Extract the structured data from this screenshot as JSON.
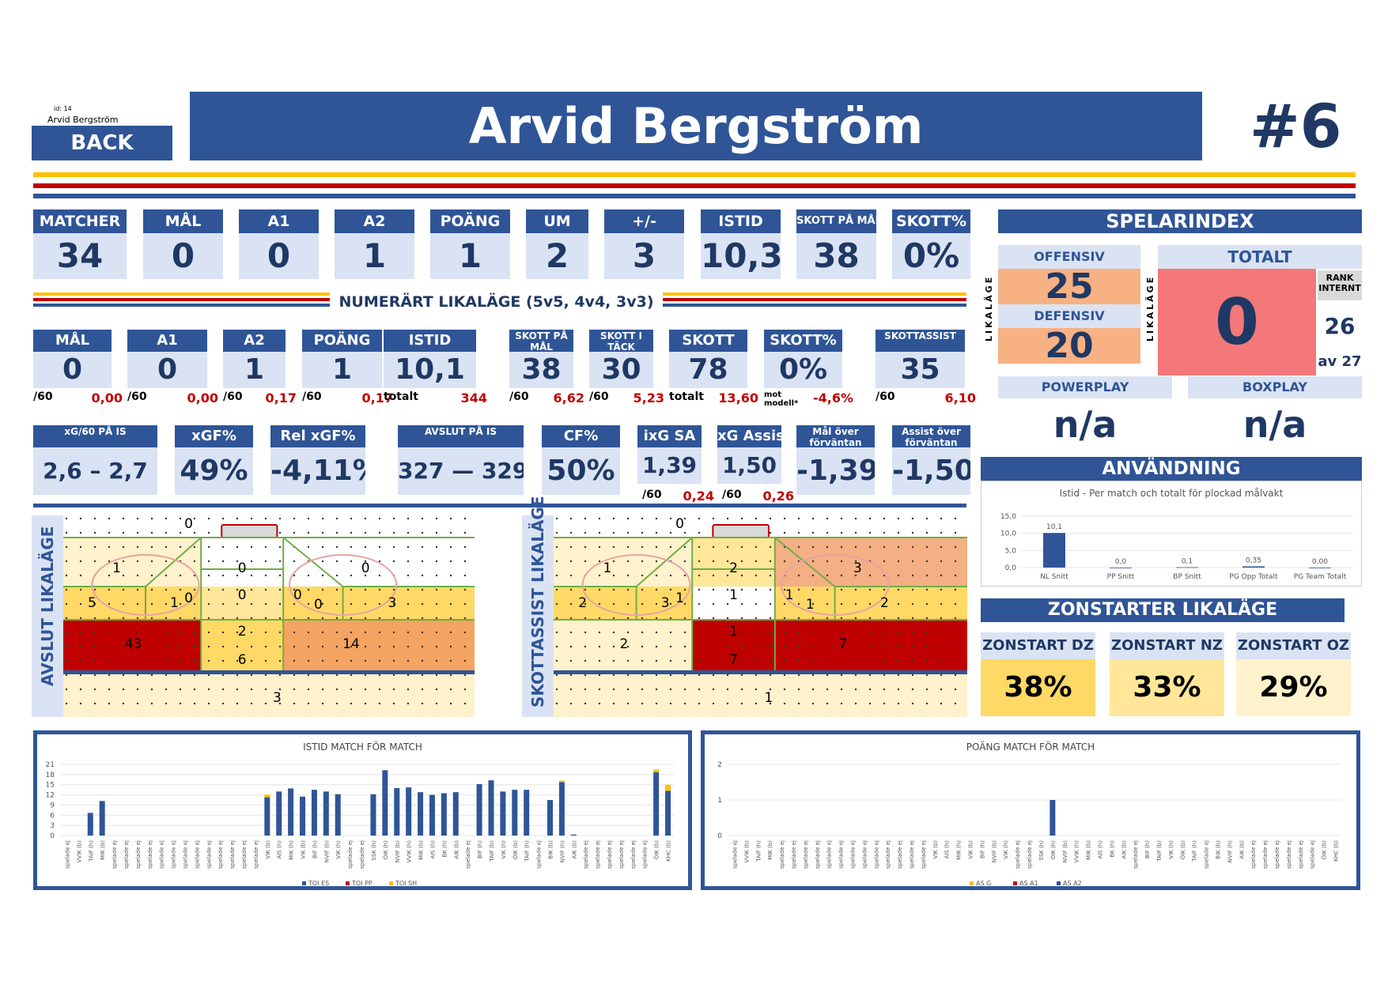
{
  "header": {
    "id_label": "id:",
    "id_value": "14",
    "small_name": "Arvid Bergström",
    "back_label": "BACK",
    "player_name": "Arvid Bergström",
    "jersey": "#6"
  },
  "top_stats": [
    {
      "label": "MATCHER",
      "value": "34"
    },
    {
      "label": "MÅL",
      "value": "0"
    },
    {
      "label": "A1",
      "value": "0"
    },
    {
      "label": "A2",
      "value": "1"
    },
    {
      "label": "POÄNG",
      "value": "1"
    },
    {
      "label": "UM",
      "value": "2"
    },
    {
      "label": "+/-",
      "value": "3"
    },
    {
      "label": "ISTID",
      "value": "10,3"
    },
    {
      "label": "SKOTT PÅ MÅL",
      "value": "38"
    },
    {
      "label": "SKOTT%",
      "value": "0%"
    }
  ],
  "even_strength_title": "NUMERÄRT LIKALÄGE (5v5, 4v4, 3v3)",
  "es_stats": [
    {
      "label": "MÅL",
      "value": "0",
      "sub_label": "/60",
      "sub_value": "0,00"
    },
    {
      "label": "A1",
      "value": "0",
      "sub_label": "/60",
      "sub_value": "0,00"
    },
    {
      "label": "A2",
      "value": "1",
      "sub_label": "/60",
      "sub_value": "0,17"
    },
    {
      "label": "POÄNG",
      "value": "1",
      "sub_label": "/60",
      "sub_value": "0,17"
    },
    {
      "label": "ISTID",
      "value": "10,1",
      "sub_label": "totalt",
      "sub_value": "344"
    },
    {
      "label": "SKOTT PÅ MÅL",
      "value": "38",
      "sub_label": "/60",
      "sub_value": "6,62"
    },
    {
      "label": "SKOTT I TÄCK",
      "value": "30",
      "sub_label": "/60",
      "sub_value": "5,23"
    },
    {
      "label": "SKOTT",
      "value": "78",
      "sub_label": "totalt",
      "sub_value": "13,60"
    },
    {
      "label": "SKOTT%",
      "value": "0%",
      "sub_label": "mot modell*",
      "sub_value": "-4,6%"
    },
    {
      "label": "SKOTTASSIST",
      "value": "35",
      "sub_label": "/60",
      "sub_value": "6,10"
    }
  ],
  "xg_stats": [
    {
      "label": "xG/60 PÅ IS",
      "value": "2,6 – 2,7"
    },
    {
      "label": "xGF%",
      "value": "49%"
    },
    {
      "label": "Rel xGF%",
      "value": "-4,11%"
    },
    {
      "label": "AVSLUT PÅ IS",
      "value": "327 — 329"
    },
    {
      "label": "CF%",
      "value": "50%"
    },
    {
      "label": "ixG SA",
      "value": "1,39",
      "sub_label": "/60",
      "sub_value": "0,24"
    },
    {
      "label": "xG Assist",
      "value": "1,50",
      "sub_label": "/60",
      "sub_value": "0,26"
    },
    {
      "label": "Mål över förväntan",
      "value": "-1,39"
    },
    {
      "label": "Assist över förväntan",
      "value": "-1,50"
    }
  ],
  "spelarindex": {
    "title": "SPELARINDEX",
    "side_label": "LIKALÄGE",
    "offensiv_label": "OFFENSIV",
    "offensiv_value": "25",
    "defensiv_label": "DEFENSIV",
    "defensiv_value": "20",
    "totalt_label": "TOTALT",
    "totalt_value": "0",
    "rank_label": "RANK INTERNT",
    "rank_value": "26",
    "rank_of": "av 27",
    "powerplay_label": "POWERPLAY",
    "powerplay_value": "n/a",
    "boxplay_label": "BOXPLAY",
    "boxplay_value": "n/a"
  },
  "anvandning": {
    "title": "ANVÄNDNING",
    "chart_data": {
      "type": "bar",
      "title": "Istid - Per match och totalt för plockad målvakt",
      "categories": [
        "NL Snitt",
        "PP Snitt",
        "BP Snitt",
        "PG Opp Totalt",
        "PG Team Totalt"
      ],
      "values": [
        10.1,
        0.0,
        0.1,
        0.35,
        0.0
      ],
      "value_labels": [
        "10,1",
        "0,0",
        "0,1",
        "0,35",
        "0,00"
      ],
      "yticks": [
        "0,0",
        "5,0",
        "10,0",
        "15,0"
      ],
      "ylim": [
        0,
        15
      ],
      "color": "#2f5597"
    }
  },
  "zonstarter": {
    "title": "ZONSTARTER LIKALÄGE",
    "items": [
      {
        "label": "ZONSTART DZ",
        "value": "38%",
        "color": "#ffd966"
      },
      {
        "label": "ZONSTART NZ",
        "value": "33%",
        "color": "#ffe699"
      },
      {
        "label": "ZONSTART OZ",
        "value": "29%",
        "color": "#fff2cc"
      }
    ]
  },
  "rink_left": {
    "title": "AVSLUT LIKALÄGE",
    "zones": [
      "0",
      "1",
      "0",
      "0",
      "0",
      "0",
      "0",
      "5",
      "1",
      "0",
      "3",
      "2",
      "43",
      "6",
      "14",
      "3"
    ]
  },
  "rink_right": {
    "title": "SKOTTASSIST LIKALÄGE",
    "zones": [
      "0",
      "1",
      "2",
      "3",
      "1",
      "1",
      "1",
      "2",
      "3",
      "1",
      "2",
      "1",
      "2",
      "7",
      "7",
      "1"
    ]
  },
  "istid_chart": {
    "chart_data": {
      "type": "bar",
      "title": "ISTID MATCH FÖR MATCH",
      "yticks": [
        "0",
        "3",
        "6",
        "9",
        "12",
        "15",
        "18",
        "21"
      ],
      "ylim": [
        0,
        21
      ],
      "categories": [
        "spelade ej",
        "VVIK (b)",
        "TAIF (h)",
        "MIK (b)",
        "spelade ej",
        "spelade ej",
        "spelade ej",
        "spelade ej",
        "spelade ej",
        "spelade ej",
        "spelade ej",
        "spelade ej",
        "spelade ej",
        "spelade ej",
        "spelade ej",
        "spelade ej",
        "spelade ej",
        "VIK (b)",
        "AIS (h)",
        "MIK (h)",
        "VIK (b)",
        "BIF (h)",
        "NVIF (b)",
        "VIK (h)",
        "spelade ej",
        "spelade ej",
        "SSK (h)",
        "ÖIK (h)",
        "NVIF (b)",
        "VVIK (h)",
        "MIK (b)",
        "AIS (h)",
        "BK (h)",
        "AIK (b)",
        "spelade ej",
        "BIF (h)",
        "TAIF (b)",
        "VIK (h)",
        "ÖIK (b)",
        "TAIF (h)",
        "spelade ej",
        "BIK (b)",
        "NVIF (h)",
        "AIK (b)",
        "spelade ej",
        "spelade ej",
        "spelade ej",
        "spelade ej",
        "spelade ej",
        "spelade ej",
        "ÖIK (b)",
        "KHC (b)"
      ],
      "series": [
        {
          "name": "TOI ES",
          "color": "#2f5597",
          "values": [
            0,
            0,
            6.7,
            10.2,
            0,
            0,
            0,
            0,
            0,
            0,
            0,
            0,
            0,
            0,
            0,
            0,
            0,
            11.3,
            13,
            13.9,
            11.5,
            13.5,
            13,
            12.2,
            0,
            0,
            12.2,
            19.3,
            14,
            14.2,
            12.8,
            12,
            12.5,
            12.8,
            0,
            15.2,
            16.3,
            13,
            13.5,
            13.5,
            0,
            10.5,
            15.8,
            0.3,
            0,
            0,
            0,
            0,
            0,
            0,
            18.7,
            13.2
          ]
        },
        {
          "name": "TOI PP",
          "color": "#c00000",
          "values": [
            0,
            0,
            0,
            0,
            0,
            0,
            0,
            0,
            0,
            0,
            0,
            0,
            0,
            0,
            0,
            0,
            0,
            0,
            0,
            0,
            0,
            0,
            0,
            0,
            0,
            0,
            0,
            0,
            0,
            0,
            0,
            0,
            0,
            0,
            0,
            0,
            0,
            0,
            0,
            0,
            0,
            0,
            0,
            0,
            0,
            0,
            0,
            0,
            0,
            0,
            0,
            0
          ]
        },
        {
          "name": "TOI SH",
          "color": "#ffc000",
          "values": [
            0,
            0,
            0,
            0,
            0,
            0,
            0,
            0,
            0,
            0,
            0,
            0,
            0,
            0,
            0,
            0,
            0,
            0.8,
            0,
            0,
            0,
            0,
            0,
            0,
            0,
            0,
            0,
            0,
            0,
            0,
            0,
            0,
            0,
            0,
            0,
            0,
            0,
            0,
            0,
            0,
            0,
            0,
            0.4,
            0,
            0,
            0,
            0,
            0,
            0,
            0,
            0.8,
            1.8
          ]
        }
      ]
    }
  },
  "poang_chart": {
    "chart_data": {
      "type": "bar",
      "title": "POÄNG MATCH FÖR MATCH",
      "yticks": [
        "0",
        "1",
        "2"
      ],
      "ylim": [
        0,
        2
      ],
      "categories": [
        "spelade ej",
        "VVIK (b)",
        "TAIF (h)",
        "MIK (b)",
        "spelade ej",
        "spelade ej",
        "spelade ej",
        "spelade ej",
        "spelade ej",
        "spelade ej",
        "spelade ej",
        "spelade ej",
        "spelade ej",
        "spelade ej",
        "spelade ej",
        "spelade ej",
        "spelade ej",
        "VIK (b)",
        "AIS (h)",
        "MIK (h)",
        "VIK (b)",
        "BIF (h)",
        "NVIF (b)",
        "VIK (h)",
        "spelade ej",
        "spelade ej",
        "SSK (h)",
        "ÖIK (h)",
        "NVIF (b)",
        "VVIK (h)",
        "MIK (b)",
        "AIS (h)",
        "BK (h)",
        "AIK (b)",
        "spelade ej",
        "BIF (h)",
        "TAIF (b)",
        "VIK (h)",
        "ÖIK (b)",
        "TAIF (h)",
        "spelade ej",
        "BIK (b)",
        "NVIF (h)",
        "AIK (b)",
        "spelade ej",
        "spelade ej",
        "spelade ej",
        "spelade ej",
        "spelade ej",
        "spelade ej",
        "ÖIK (b)",
        "KHC (b)"
      ],
      "series": [
        {
          "name": "AS G",
          "color": "#ffc000",
          "values": [
            0,
            0,
            0,
            0,
            0,
            0,
            0,
            0,
            0,
            0,
            0,
            0,
            0,
            0,
            0,
            0,
            0,
            0,
            0,
            0,
            0,
            0,
            0,
            0,
            0,
            0,
            0,
            0,
            0,
            0,
            0,
            0,
            0,
            0,
            0,
            0,
            0,
            0,
            0,
            0,
            0,
            0,
            0,
            0,
            0,
            0,
            0,
            0,
            0,
            0,
            0,
            0
          ]
        },
        {
          "name": "AS A1",
          "color": "#c00000",
          "values": [
            0,
            0,
            0,
            0,
            0,
            0,
            0,
            0,
            0,
            0,
            0,
            0,
            0,
            0,
            0,
            0,
            0,
            0,
            0,
            0,
            0,
            0,
            0,
            0,
            0,
            0,
            0,
            0,
            0,
            0,
            0,
            0,
            0,
            0,
            0,
            0,
            0,
            0,
            0,
            0,
            0,
            0,
            0,
            0,
            0,
            0,
            0,
            0,
            0,
            0,
            0,
            0
          ]
        },
        {
          "name": "AS A2",
          "color": "#2f5597",
          "values": [
            0,
            0,
            0,
            0,
            0,
            0,
            0,
            0,
            0,
            0,
            0,
            0,
            0,
            0,
            0,
            0,
            0,
            0,
            0,
            0,
            0,
            0,
            0,
            0,
            0,
            0,
            0,
            1,
            0,
            0,
            0,
            0,
            0,
            0,
            0,
            0,
            0,
            0,
            0,
            0,
            0,
            0,
            0,
            0,
            0,
            0,
            0,
            0,
            0,
            0,
            0,
            0
          ]
        }
      ]
    }
  }
}
